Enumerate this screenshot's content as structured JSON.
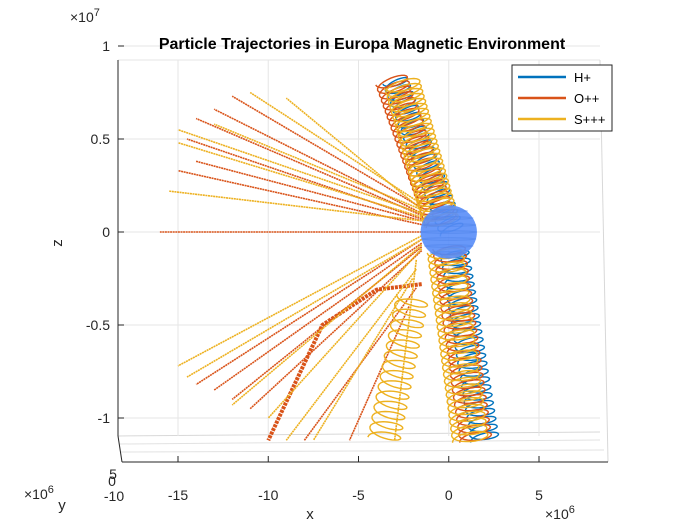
{
  "chart_data": {
    "type": "line",
    "title": "Particle Trajectories in Europa Magnetic Environment",
    "xlabel": "x",
    "ylabel": "y",
    "zlabel": "z",
    "x_exponent": "×10^6",
    "y_exponent": "×10^6",
    "z_exponent": "×10^7",
    "xlim": [
      -18,
      8
    ],
    "zlim": [
      -1.15,
      1.0
    ],
    "x_ticks": [
      "-15",
      "-10",
      "-5",
      "0",
      "5"
    ],
    "z_ticks": [
      "1",
      "0.5",
      "0",
      "-0.5",
      "-1"
    ],
    "y_ticks": [
      "5",
      "0",
      "-10"
    ],
    "grid": true,
    "legend_position": "top-right",
    "body": {
      "name": "Europa",
      "center": [
        0,
        0,
        0
      ],
      "radius": 1.56,
      "color": "#5b8ff9"
    },
    "series": [
      {
        "name": "H+",
        "color": "#0072bd",
        "tracks": [
          {
            "kind": "spiral",
            "from": [
              -3.0,
              0.82
            ],
            "to": [
              0.2,
              0.0
            ],
            "radius": 0.7,
            "turns": 22
          },
          {
            "kind": "spiral",
            "from": [
              0.3,
              -0.1
            ],
            "to": [
              2.0,
              -1.12
            ],
            "radius": 0.8,
            "turns": 24
          }
        ]
      },
      {
        "name": "O++",
        "color": "#d95319",
        "tracks": [
          {
            "kind": "spiral",
            "from": [
              -3.2,
              0.82
            ],
            "to": [
              -0.4,
              0.05
            ],
            "radius": 0.9,
            "turns": 26
          },
          {
            "kind": "spiral",
            "from": [
              0.0,
              -0.08
            ],
            "to": [
              1.5,
              -1.12
            ],
            "radius": 0.9,
            "turns": 26
          },
          {
            "kind": "ray",
            "points": [
              [
                -1.5,
                0.0
              ],
              [
                -16.0,
                0.0
              ]
            ]
          },
          {
            "kind": "ray",
            "points": [
              [
                -1.5,
                0.04
              ],
              [
                -15.0,
                0.33
              ]
            ]
          },
          {
            "kind": "ray",
            "points": [
              [
                -1.5,
                0.07
              ],
              [
                -14.5,
                0.5
              ]
            ]
          },
          {
            "kind": "ray",
            "points": [
              [
                -1.5,
                0.09
              ],
              [
                -14.0,
                0.61
              ]
            ]
          },
          {
            "kind": "ray",
            "points": [
              [
                -1.5,
                0.1
              ],
              [
                -13.0,
                0.66
              ]
            ]
          },
          {
            "kind": "ray",
            "points": [
              [
                -1.5,
                0.13
              ],
              [
                -12.0,
                0.73
              ]
            ]
          },
          {
            "kind": "ray",
            "points": [
              [
                -1.5,
                0.06
              ],
              [
                -14.0,
                0.38
              ]
            ]
          },
          {
            "kind": "ray",
            "points": [
              [
                -1.5,
                -0.04
              ],
              [
                -14.0,
                -0.82
              ]
            ]
          },
          {
            "kind": "ray",
            "points": [
              [
                -1.5,
                -0.06
              ],
              [
                -13.0,
                -0.85
              ]
            ]
          },
          {
            "kind": "ray",
            "points": [
              [
                -1.5,
                -0.08
              ],
              [
                -12.0,
                -0.9
              ]
            ]
          },
          {
            "kind": "ray",
            "points": [
              [
                -1.5,
                -0.1
              ],
              [
                -11.0,
                -0.95
              ]
            ]
          },
          {
            "kind": "thick",
            "points": [
              [
                -1.5,
                -0.28
              ],
              [
                -4.0,
                -0.31
              ],
              [
                -7.0,
                -0.5
              ],
              [
                -10.0,
                -1.12
              ]
            ]
          },
          {
            "kind": "ray",
            "points": [
              [
                -1.8,
                -0.3
              ],
              [
                -8.0,
                -1.12
              ]
            ]
          },
          {
            "kind": "ray",
            "points": [
              [
                -2.2,
                -0.4
              ],
              [
                -5.5,
                -1.12
              ]
            ]
          }
        ]
      },
      {
        "name": "S+++",
        "color": "#edb120",
        "tracks": [
          {
            "kind": "spiral",
            "from": [
              -2.6,
              0.8
            ],
            "to": [
              -0.4,
              0.05
            ],
            "radius": 1.0,
            "turns": 28
          },
          {
            "kind": "spiral",
            "from": [
              -0.2,
              -0.1
            ],
            "to": [
              1.2,
              -1.12
            ],
            "radius": 1.0,
            "turns": 28
          },
          {
            "kind": "spiral",
            "from": [
              -2.0,
              -0.35
            ],
            "to": [
              -3.6,
              -1.12
            ],
            "radius": 0.9,
            "turns": 14
          },
          {
            "kind": "ray",
            "points": [
              [
                -1.5,
                0.15
              ],
              [
                -11.0,
                0.75
              ]
            ]
          },
          {
            "kind": "ray",
            "points": [
              [
                -1.5,
                0.12
              ],
              [
                -13.0,
                0.58
              ]
            ]
          },
          {
            "kind": "ray",
            "points": [
              [
                -1.5,
                0.1
              ],
              [
                -15.0,
                0.55
              ]
            ]
          },
          {
            "kind": "ray",
            "points": [
              [
                -1.5,
                0.08
              ],
              [
                -15.0,
                0.48
              ]
            ]
          },
          {
            "kind": "ray",
            "points": [
              [
                -1.5,
                0.06
              ],
              [
                -15.5,
                0.22
              ]
            ]
          },
          {
            "kind": "ray",
            "points": [
              [
                -1.5,
                0.12
              ],
              [
                -9.0,
                0.72
              ]
            ]
          },
          {
            "kind": "ray",
            "points": [
              [
                -1.5,
                -0.02
              ],
              [
                -15.0,
                -0.72
              ]
            ]
          },
          {
            "kind": "ray",
            "points": [
              [
                -1.5,
                -0.04
              ],
              [
                -14.5,
                -0.78
              ]
            ]
          },
          {
            "kind": "ray",
            "points": [
              [
                -1.5,
                -0.07
              ],
              [
                -12.0,
                -0.93
              ]
            ]
          },
          {
            "kind": "ray",
            "points": [
              [
                -1.5,
                -0.09
              ],
              [
                -10.0,
                -1.0
              ]
            ]
          },
          {
            "kind": "ray",
            "points": [
              [
                -1.8,
                -0.2
              ],
              [
                -9.0,
                -1.12
              ]
            ]
          },
          {
            "kind": "ray",
            "points": [
              [
                -2.0,
                -0.25
              ],
              [
                -7.5,
                -1.12
              ]
            ]
          },
          {
            "kind": "ray",
            "points": [
              [
                -1.8,
                -0.15
              ],
              [
                -3.0,
                -1.12
              ]
            ]
          }
        ]
      }
    ]
  }
}
